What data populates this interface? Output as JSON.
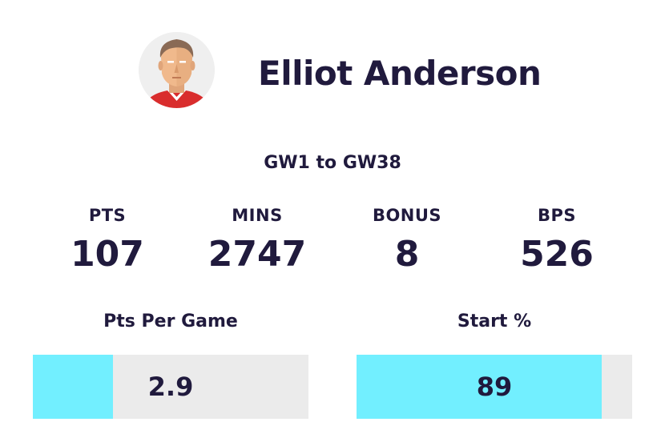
{
  "player": {
    "name": "Elliot Anderson",
    "avatar_icon": "player-avatar-icon",
    "shirt_color": "#d92d2d"
  },
  "range": "GW1 to GW38",
  "stats": [
    {
      "label": "PTS",
      "value": "107"
    },
    {
      "label": "MINS",
      "value": "2747"
    },
    {
      "label": "BONUS",
      "value": "8"
    },
    {
      "label": "BPS",
      "value": "526"
    }
  ],
  "bars": [
    {
      "title": "Pts Per Game",
      "value": "2.9",
      "fill_fraction": 0.29
    },
    {
      "title": "Start %",
      "value": "89",
      "fill_fraction": 0.89
    }
  ],
  "colors": {
    "text": "#201a3d",
    "bar_fill": "#72efff",
    "bar_track": "#ebebeb"
  }
}
